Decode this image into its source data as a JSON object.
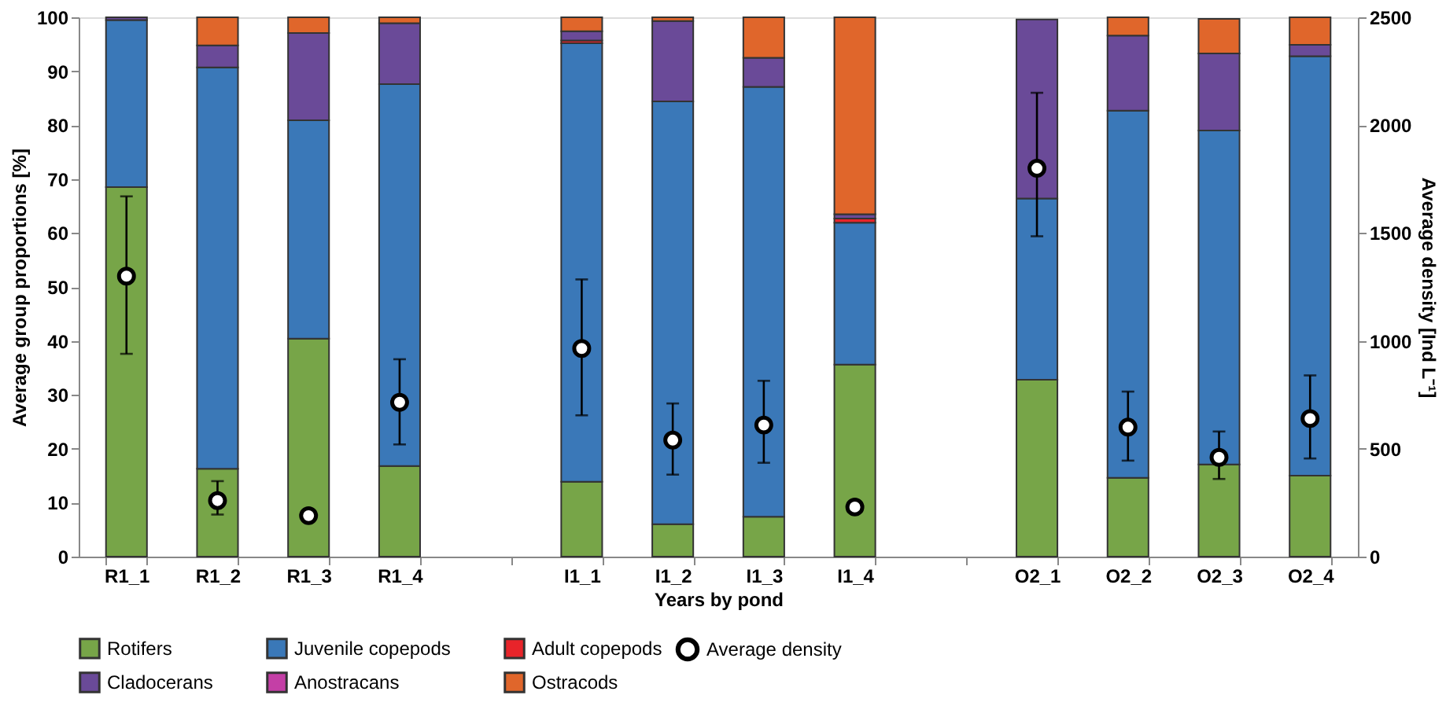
{
  "chart_data": {
    "type": "bar",
    "stacked": true,
    "xlabel": "Years by pond",
    "ylabel": "Average group proportions [%]",
    "y2label": "Average density [Ind L⁻¹]",
    "categories": [
      "R1_1",
      "R1_2",
      "R1_3",
      "R1_4",
      null,
      "I1_1",
      "I1_2",
      "I1_3",
      "I1_4",
      null,
      "O2_1",
      "O2_2",
      "O2_3",
      "O2_4"
    ],
    "series": [
      {
        "name": "Rotifers",
        "color": "#77a548",
        "values": [
          68.5,
          16.3,
          40.4,
          16.8,
          null,
          13.9,
          6.0,
          7.4,
          35.6,
          null,
          32.8,
          14.6,
          17.1,
          15.0
        ]
      },
      {
        "name": "Juvenile copepods",
        "color": "#3a78b8",
        "values": [
          31.0,
          74.4,
          40.5,
          70.8,
          null,
          81.3,
          78.4,
          79.7,
          26.3,
          null,
          33.6,
          68.1,
          61.9,
          77.8
        ]
      },
      {
        "name": "Adult copepods",
        "color": "#e8242a",
        "values": [
          null,
          null,
          null,
          null,
          null,
          0.5,
          null,
          null,
          0.8,
          null,
          null,
          null,
          null,
          null
        ]
      },
      {
        "name": "Cladocerans",
        "color": "#6a4a98",
        "values": [
          0.5,
          4.1,
          16.2,
          11.3,
          null,
          1.7,
          14.9,
          5.4,
          0.8,
          null,
          33.2,
          13.9,
          14.3,
          2.1
        ]
      },
      {
        "name": "Anostracans",
        "color": "#c43fa6",
        "values": [
          null,
          null,
          null,
          null,
          null,
          null,
          null,
          null,
          null,
          null,
          null,
          null,
          null,
          null
        ]
      },
      {
        "name": "Ostracods",
        "color": "#e0662b",
        "values": [
          null,
          5.2,
          2.9,
          1.1,
          null,
          2.6,
          0.7,
          7.5,
          36.5,
          null,
          null,
          3.4,
          6.4,
          5.1
        ]
      },
      {
        "name": "Average density",
        "type": "scatter",
        "axis": "y2",
        "color": "#000000",
        "marker": "circle",
        "values": [
          1300,
          260,
          190,
          715,
          null,
          965,
          540,
          610,
          230,
          null,
          1800,
          600,
          460,
          640
        ],
        "errors": [
          [
            940,
            1670
          ],
          [
            195,
            350
          ],
          [
            175,
            210
          ],
          [
            520,
            915
          ],
          null,
          [
            655,
            1285
          ],
          [
            380,
            710
          ],
          [
            435,
            815
          ],
          null,
          null,
          [
            1485,
            2150
          ],
          [
            445,
            765
          ],
          [
            360,
            580
          ],
          [
            455,
            840
          ]
        ]
      }
    ],
    "ylim": [
      0,
      100
    ],
    "yticks": [
      0,
      10,
      20,
      30,
      40,
      50,
      60,
      70,
      80,
      90,
      100
    ],
    "y2lim": [
      0,
      2500
    ],
    "y2ticks": [
      0,
      500,
      1000,
      1500,
      2000,
      2500
    ],
    "grid": false,
    "legend": "bottom"
  }
}
